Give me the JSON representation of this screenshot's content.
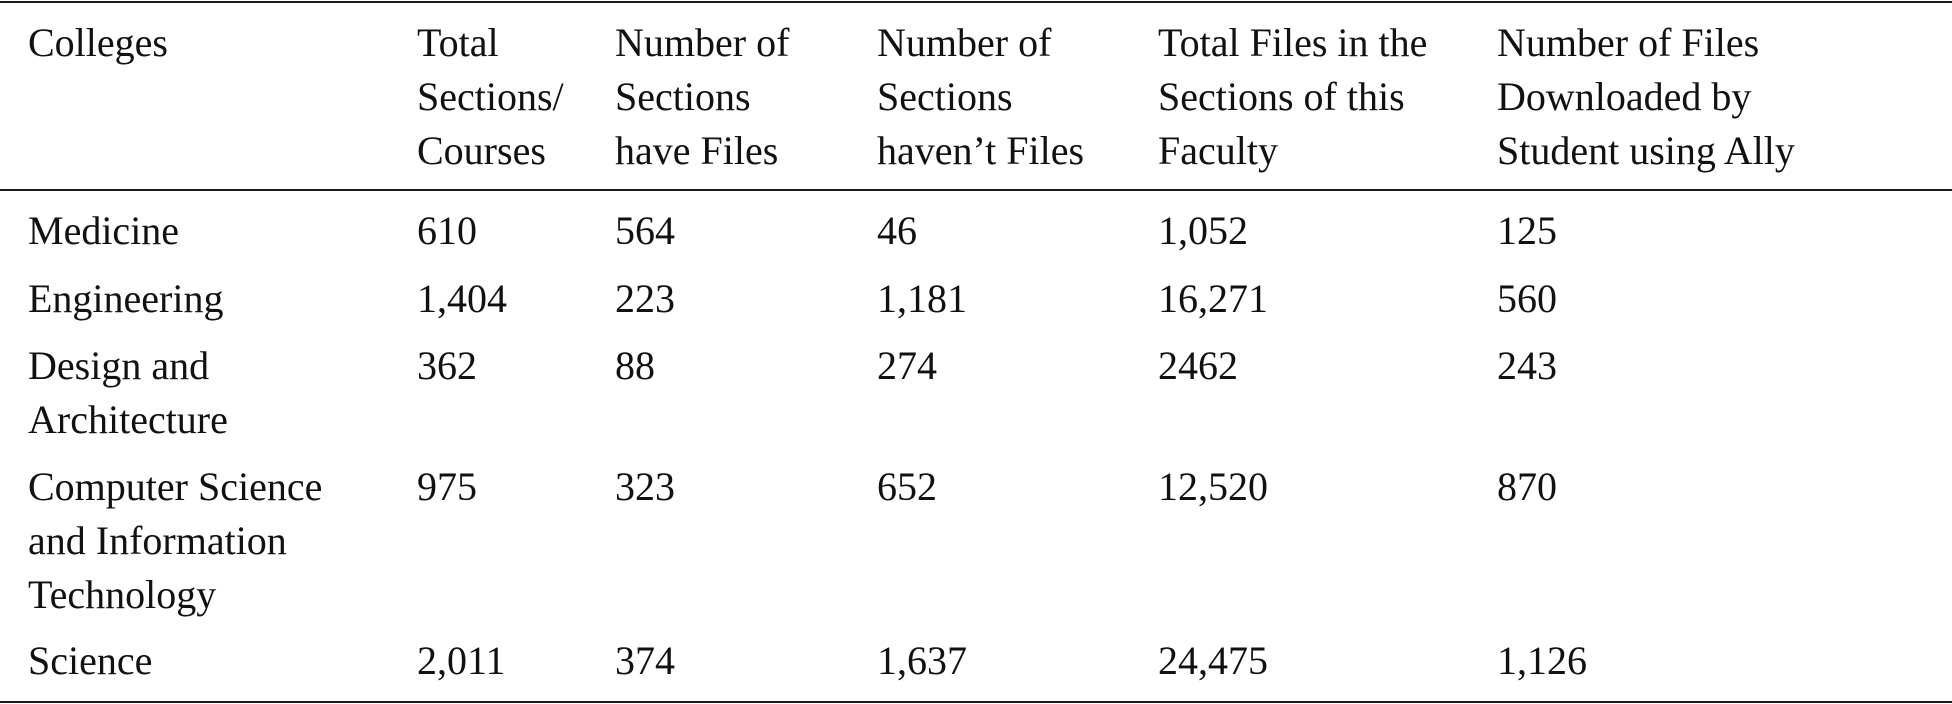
{
  "table": {
    "headers": [
      "Colleges",
      "Total\nSections/\nCourses",
      "Number of\nSections\nhave Files",
      "Number of\nSections\nhaven’t Files",
      "Total Files in the\nSections of this\nFaculty",
      "Number of Files\nDownloaded by\nStudent using Ally"
    ],
    "rows": [
      [
        "Medicine",
        "610",
        "564",
        "46",
        "1,052",
        "125"
      ],
      [
        "Engineering",
        "1,404",
        "223",
        "1,181",
        "16,271",
        "560"
      ],
      [
        "Design and\nArchitecture",
        "362",
        "88",
        "274",
        "2462",
        "243"
      ],
      [
        "Computer Science\nand Information\nTechnology",
        "975",
        "323",
        "652",
        "12,520",
        "870"
      ],
      [
        "Science",
        "2,011",
        "374",
        "1,637",
        "24,475",
        "1,126"
      ]
    ]
  }
}
